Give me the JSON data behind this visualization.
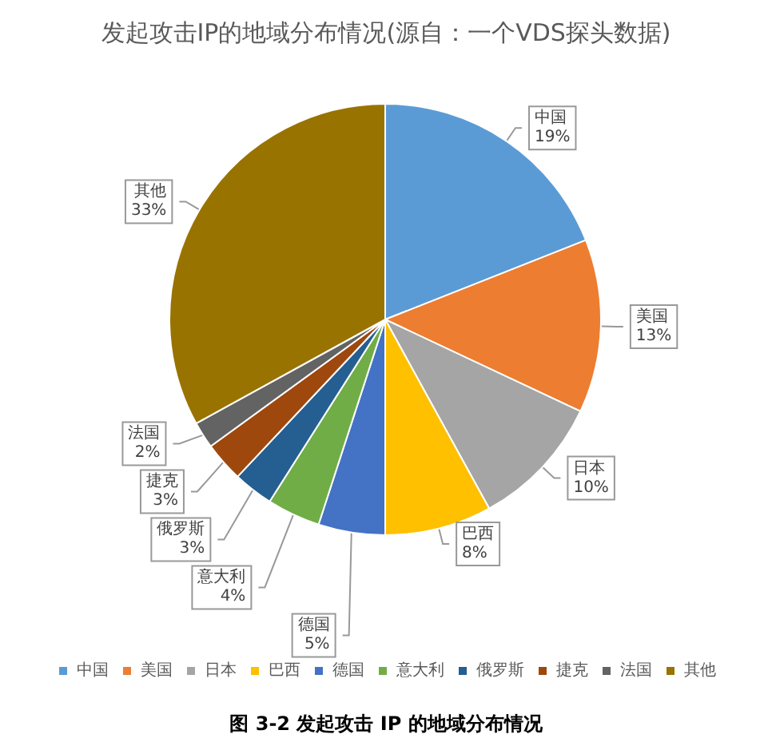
{
  "chart_data": {
    "type": "pie",
    "title": "发起攻击IP的地域分布情况(源自：一个VDS探头数据)",
    "categories": [
      "中国",
      "美国",
      "日本",
      "巴西",
      "德国",
      "意大利",
      "俄罗斯",
      "捷克",
      "法国",
      "其他"
    ],
    "values": [
      19,
      13,
      10,
      8,
      5,
      4,
      3,
      3,
      2,
      33
    ],
    "value_labels": [
      "19%",
      "13%",
      "10%",
      "8%",
      "5%",
      "4%",
      "3%",
      "3%",
      "2%",
      "33%"
    ],
    "colors": [
      "#5b9bd5",
      "#ed7d31",
      "#a5a5a5",
      "#ffc000",
      "#4472c4",
      "#70ad47",
      "#255e91",
      "#9e480e",
      "#636363",
      "#997300"
    ],
    "legend": "bottom",
    "annotations": [
      "图 3-2 发起攻击 IP 的地域分布情况"
    ]
  }
}
